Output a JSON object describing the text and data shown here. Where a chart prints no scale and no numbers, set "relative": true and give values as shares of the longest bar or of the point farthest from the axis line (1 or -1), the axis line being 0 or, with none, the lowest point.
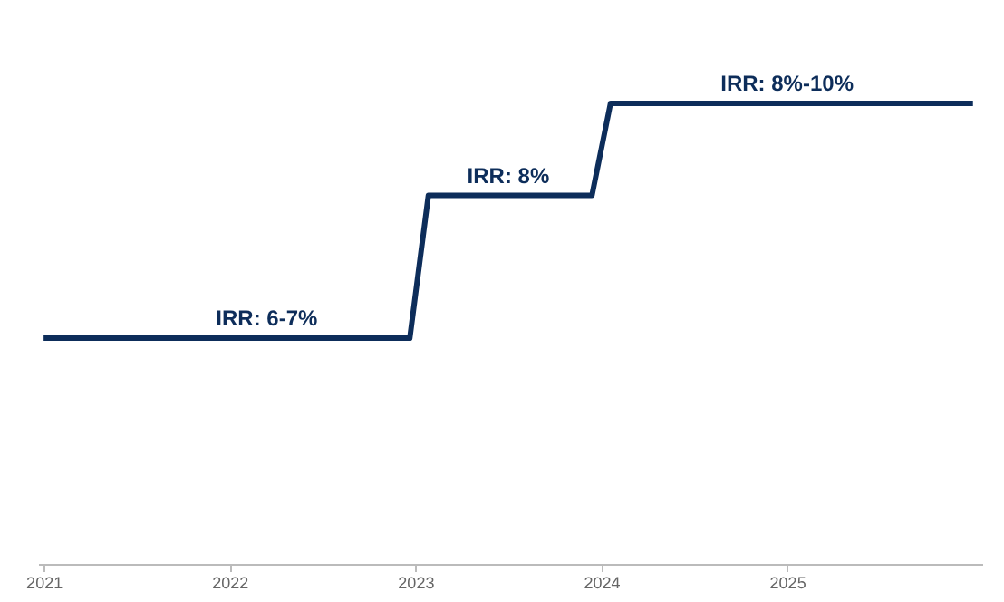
{
  "chart_data": {
    "type": "line",
    "relative": true,
    "x": [
      2021,
      2022.97,
      2023.07,
      2023.95,
      2024.05,
      2026
    ],
    "xlim": [
      2020.97,
      2026.05
    ],
    "xticks": [
      2021,
      2022,
      2023,
      2024,
      2025
    ],
    "series": [
      {
        "color": "#0d2d5a",
        "values": [
          0.49,
          0.49,
          0.8,
          0.8,
          1,
          1
        ]
      }
    ],
    "annotations": [
      {
        "text": "IRR: 6-7%",
        "x": 2022.2,
        "y": 0.49
      },
      {
        "text": "IRR: 8%",
        "x": 2023.5,
        "y": 0.8
      },
      {
        "text": "IRR: 8%-10%",
        "x": 2025,
        "y": 1
      }
    ],
    "grid": false,
    "legend": false,
    "marker": "none",
    "line_style": "solid"
  }
}
